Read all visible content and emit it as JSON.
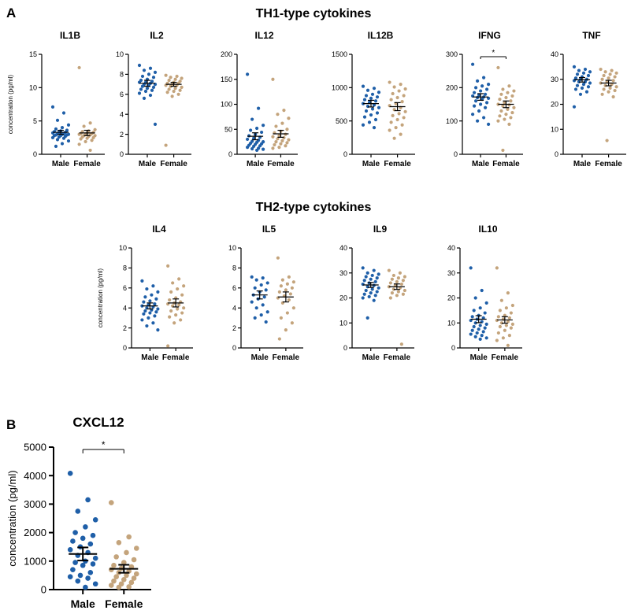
{
  "panel_a_label": "A",
  "panel_b_label": "B",
  "th1_heading": "TH1-type cytokines",
  "th2_heading": "TH2-type cytokines",
  "y_axis_label": "concentration (pg/ml)",
  "colors": {
    "male": "#1f5fa8",
    "female": "#c4a47c",
    "axis": "#000000"
  },
  "chart_data": [
    {
      "type": "scatter",
      "name": "IL1B",
      "title": "IL1B",
      "categories": [
        "Male",
        "Female"
      ],
      "ylabel": "concentration (pg/ml)",
      "ylim": [
        0,
        15
      ],
      "yticks": [
        0,
        5,
        10,
        15
      ],
      "series": [
        {
          "name": "Male",
          "values": [
            7.1,
            6.2,
            5.1,
            4.4,
            4.0,
            3.8,
            3.6,
            3.5,
            3.4,
            3.3,
            3.3,
            3.2,
            3.1,
            3.1,
            3.0,
            3.0,
            2.9,
            2.9,
            2.8,
            2.8,
            2.7,
            2.6,
            2.5,
            2.4,
            2.2,
            2.0,
            1.6,
            1.2
          ],
          "mean": 3.3,
          "sem_low": 3.0,
          "sem_high": 3.6
        },
        {
          "name": "Female",
          "values": [
            13.0,
            4.7,
            4.2,
            3.7,
            3.5,
            3.4,
            3.3,
            3.2,
            3.1,
            3.1,
            3.0,
            3.0,
            2.9,
            2.8,
            2.8,
            2.7,
            2.6,
            2.5,
            2.4,
            2.3,
            2.1,
            1.9,
            1.5,
            0.6
          ],
          "mean": 3.2,
          "sem_low": 2.8,
          "sem_high": 3.6
        }
      ]
    },
    {
      "type": "scatter",
      "name": "IL2",
      "title": "IL2",
      "categories": [
        "Male",
        "Female"
      ],
      "ylim": [
        0,
        10
      ],
      "yticks": [
        0,
        2,
        4,
        6,
        8,
        10
      ],
      "series": [
        {
          "name": "Male",
          "values": [
            8.9,
            8.6,
            8.4,
            8.2,
            8.0,
            7.8,
            7.7,
            7.5,
            7.4,
            7.3,
            7.2,
            7.2,
            7.1,
            7.0,
            7.0,
            6.9,
            6.8,
            6.7,
            6.6,
            6.5,
            6.4,
            6.3,
            6.1,
            5.9,
            5.6,
            3.0
          ],
          "mean": 7.1,
          "sem_low": 6.8,
          "sem_high": 7.4
        },
        {
          "name": "Female",
          "values": [
            7.9,
            7.8,
            7.7,
            7.6,
            7.5,
            7.4,
            7.3,
            7.2,
            7.1,
            7.1,
            7.0,
            6.9,
            6.9,
            6.8,
            6.7,
            6.6,
            6.5,
            6.4,
            6.3,
            6.2,
            6.0,
            5.8,
            0.9
          ],
          "mean": 7.0,
          "sem_low": 6.8,
          "sem_high": 7.2
        }
      ]
    },
    {
      "type": "scatter",
      "name": "IL12",
      "title": "IL12",
      "categories": [
        "Male",
        "Female"
      ],
      "ylim": [
        0,
        200
      ],
      "yticks": [
        0,
        50,
        100,
        150,
        200
      ],
      "series": [
        {
          "name": "Male",
          "values": [
            160,
            92,
            70,
            58,
            52,
            48,
            44,
            40,
            37,
            34,
            32,
            30,
            28,
            26,
            25,
            24,
            22,
            21,
            20,
            18,
            17,
            16,
            14,
            12,
            11,
            10,
            8
          ],
          "mean": 36,
          "sem_low": 29,
          "sem_high": 43
        },
        {
          "name": "Female",
          "values": [
            150,
            88,
            80,
            72,
            62,
            56,
            50,
            46,
            43,
            40,
            37,
            35,
            33,
            31,
            29,
            27,
            25,
            23,
            21,
            19,
            17,
            14,
            12
          ],
          "mean": 41,
          "sem_low": 34,
          "sem_high": 48
        }
      ]
    },
    {
      "type": "scatter",
      "name": "IL12B",
      "title": "IL12B",
      "categories": [
        "Male",
        "Female"
      ],
      "ylim": [
        0,
        1500
      ],
      "yticks": [
        0,
        500,
        1000,
        1500
      ],
      "series": [
        {
          "name": "Male",
          "values": [
            1020,
            990,
            960,
            930,
            900,
            880,
            860,
            840,
            820,
            800,
            780,
            760,
            740,
            720,
            700,
            680,
            650,
            620,
            590,
            560,
            520,
            480,
            440,
            400
          ],
          "mean": 760,
          "sem_low": 710,
          "sem_high": 810
        },
        {
          "name": "Female",
          "values": [
            1080,
            1050,
            1010,
            980,
            950,
            910,
            880,
            850,
            820,
            790,
            760,
            730,
            700,
            670,
            640,
            610,
            580,
            550,
            520,
            480,
            440,
            400,
            360,
            300,
            240
          ],
          "mean": 715,
          "sem_low": 655,
          "sem_high": 775
        }
      ]
    },
    {
      "type": "scatter",
      "name": "IFNG",
      "title": "IFNG",
      "categories": [
        "Male",
        "Female"
      ],
      "ylim": [
        0,
        300
      ],
      "yticks": [
        0,
        100,
        200,
        300
      ],
      "significance": "*",
      "series": [
        {
          "name": "Male",
          "values": [
            270,
            230,
            220,
            210,
            205,
            200,
            195,
            190,
            185,
            180,
            178,
            175,
            172,
            170,
            168,
            165,
            160,
            155,
            150,
            145,
            140,
            130,
            120,
            110,
            100,
            90
          ],
          "mean": 172,
          "sem_low": 162,
          "sem_high": 182
        },
        {
          "name": "Female",
          "values": [
            260,
            205,
            195,
            190,
            185,
            180,
            175,
            170,
            165,
            160,
            155,
            150,
            148,
            145,
            140,
            135,
            130,
            125,
            120,
            115,
            110,
            105,
            100,
            90,
            12
          ],
          "mean": 150,
          "sem_low": 140,
          "sem_high": 160
        }
      ]
    },
    {
      "type": "scatter",
      "name": "TNF",
      "title": "TNF",
      "categories": [
        "Male",
        "Female"
      ],
      "ylim": [
        0,
        40
      ],
      "yticks": [
        0,
        10,
        20,
        30,
        40
      ],
      "series": [
        {
          "name": "Male",
          "values": [
            35,
            34,
            33.5,
            33,
            32.5,
            32,
            31.5,
            31,
            30.5,
            30,
            30,
            29.5,
            29,
            29,
            28.5,
            28,
            27.5,
            27,
            26.5,
            26,
            25,
            24,
            19
          ],
          "mean": 29.8,
          "sem_low": 28.9,
          "sem_high": 30.7
        },
        {
          "name": "Female",
          "values": [
            34,
            33.5,
            33,
            32.5,
            32,
            31.5,
            31,
            30.5,
            30,
            29.5,
            29,
            28.5,
            28,
            27.5,
            27,
            26.5,
            26,
            25.5,
            25,
            24,
            23,
            5.5
          ],
          "mean": 28.5,
          "sem_low": 27.4,
          "sem_high": 29.6
        }
      ]
    },
    {
      "type": "scatter",
      "name": "IL4",
      "title": "IL4",
      "categories": [
        "Male",
        "Female"
      ],
      "ylabel": "concentration (pg/ml)",
      "ylim": [
        0,
        10
      ],
      "yticks": [
        0,
        2,
        4,
        6,
        8,
        10
      ],
      "series": [
        {
          "name": "Male",
          "values": [
            6.7,
            6.2,
            5.9,
            5.6,
            5.3,
            5.1,
            4.9,
            4.7,
            4.6,
            4.4,
            4.3,
            4.2,
            4.1,
            4.0,
            3.9,
            3.8,
            3.7,
            3.6,
            3.5,
            3.4,
            3.2,
            3.0,
            2.8,
            2.5,
            2.2,
            1.8
          ],
          "mean": 4.2,
          "sem_low": 3.9,
          "sem_high": 4.5
        },
        {
          "name": "Female",
          "values": [
            8.2,
            6.9,
            6.5,
            6.2,
            5.9,
            5.6,
            5.3,
            5.0,
            4.8,
            4.6,
            4.5,
            4.4,
            4.3,
            4.2,
            4.0,
            3.9,
            3.7,
            3.5,
            3.3,
            3.1,
            2.8,
            2.5,
            0.2
          ],
          "mean": 4.5,
          "sem_low": 4.1,
          "sem_high": 4.9
        }
      ]
    },
    {
      "type": "scatter",
      "name": "IL5",
      "title": "IL5",
      "categories": [
        "Male",
        "Female"
      ],
      "ylim": [
        0,
        10
      ],
      "yticks": [
        0,
        2,
        4,
        6,
        8,
        10
      ],
      "series": [
        {
          "name": "Male",
          "values": [
            7.1,
            7.0,
            6.8,
            6.5,
            6.3,
            6.0,
            5.8,
            5.6,
            5.3,
            5.1,
            4.9,
            4.6,
            4.3,
            4.0,
            3.6,
            3.3,
            3.0,
            2.6
          ],
          "mean": 5.3,
          "sem_low": 4.9,
          "sem_high": 5.7
        },
        {
          "name": "Female",
          "values": [
            9.0,
            7.1,
            6.8,
            6.6,
            6.4,
            6.2,
            6.0,
            5.8,
            5.6,
            5.4,
            5.2,
            5.0,
            4.8,
            4.5,
            4.0,
            3.5,
            3.0,
            2.5,
            1.8,
            0.9
          ],
          "mean": 5.1,
          "sem_low": 4.6,
          "sem_high": 5.6
        }
      ]
    },
    {
      "type": "scatter",
      "name": "IL9",
      "title": "IL9",
      "categories": [
        "Male",
        "Female"
      ],
      "ylim": [
        0,
        40
      ],
      "yticks": [
        0,
        10,
        20,
        30,
        40
      ],
      "series": [
        {
          "name": "Male",
          "values": [
            32,
            31,
            30,
            29.5,
            29,
            28.5,
            28,
            27.5,
            27,
            26.5,
            26,
            25.5,
            25,
            24.5,
            24,
            23.5,
            23,
            22.5,
            22,
            21.5,
            21,
            20.5,
            20,
            19,
            12
          ],
          "mean": 25.2,
          "sem_low": 24.2,
          "sem_high": 26.2
        },
        {
          "name": "Female",
          "values": [
            31,
            30,
            29,
            28.5,
            28,
            27.5,
            27,
            26.5,
            26,
            25.5,
            25,
            24.5,
            24,
            23.5,
            23,
            22.5,
            22,
            21.5,
            21,
            20,
            1.5
          ],
          "mean": 24.5,
          "sem_low": 23.4,
          "sem_high": 25.6
        }
      ]
    },
    {
      "type": "scatter",
      "name": "IL10",
      "title": "IL10",
      "categories": [
        "Male",
        "Female"
      ],
      "ylim": [
        0,
        40
      ],
      "yticks": [
        0,
        10,
        20,
        30,
        40
      ],
      "series": [
        {
          "name": "Male",
          "values": [
            32,
            23,
            20,
            18,
            16,
            15,
            14,
            13,
            12.5,
            12,
            11.5,
            11,
            10.5,
            10,
            9.5,
            9,
            8.5,
            8,
            7.5,
            7,
            6.5,
            6,
            5.5,
            5,
            4.5,
            4,
            3.5
          ],
          "mean": 11.5,
          "sem_low": 10.1,
          "sem_high": 12.9
        },
        {
          "name": "Female",
          "values": [
            32,
            22,
            19,
            17,
            16,
            15,
            14,
            13,
            12.5,
            12,
            11.5,
            11,
            10.5,
            10,
            9.5,
            9,
            8.5,
            8,
            7,
            6,
            5,
            4,
            3,
            1
          ],
          "mean": 11.2,
          "sem_low": 9.9,
          "sem_high": 12.5
        }
      ]
    },
    {
      "type": "scatter",
      "name": "CXCL12",
      "title": "CXCL12",
      "categories": [
        "Male",
        "Female"
      ],
      "ylabel": "concentration (pg/ml)",
      "ylim": [
        0,
        5000
      ],
      "yticks": [
        0,
        1000,
        2000,
        3000,
        4000,
        5000
      ],
      "significance": "*",
      "series": [
        {
          "name": "Male",
          "values": [
            4080,
            3150,
            2750,
            2450,
            2200,
            2000,
            1900,
            1800,
            1700,
            1600,
            1500,
            1400,
            1300,
            1200,
            1100,
            1000,
            950,
            900,
            850,
            700,
            600,
            500,
            450,
            400,
            300,
            200,
            80
          ],
          "mean": 1250,
          "sem_low": 1020,
          "sem_high": 1480
        },
        {
          "name": "Female",
          "values": [
            3050,
            1850,
            1650,
            1450,
            1300,
            1150,
            1050,
            950,
            850,
            800,
            750,
            700,
            650,
            600,
            550,
            500,
            450,
            400,
            350,
            300,
            250,
            200,
            150,
            100,
            80
          ],
          "mean": 730,
          "sem_low": 590,
          "sem_high": 870
        }
      ]
    }
  ]
}
